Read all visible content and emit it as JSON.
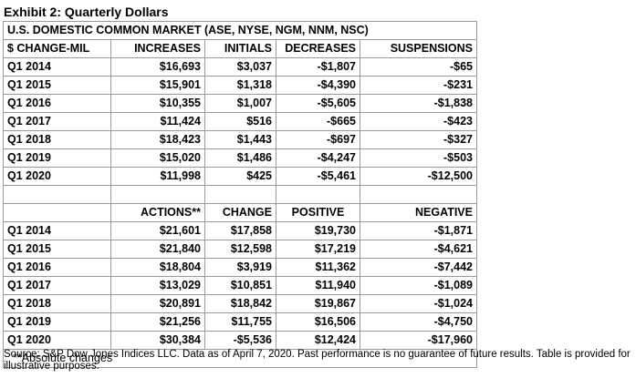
{
  "title": "Exhibit 2: Quarterly Dollars",
  "market_header": "U.S. DOMESTIC COMMON MARKET (ASE, NYSE, NGM, NNM, NSC)",
  "table1": {
    "headers": [
      "$ CHANGE-MIL",
      "INCREASES",
      "INITIALS",
      "DECREASES",
      "SUSPENSIONS"
    ],
    "rows": [
      [
        "Q1 2014",
        "$16,693",
        "$3,037",
        "-$1,807",
        "-$65"
      ],
      [
        "Q1 2015",
        "$15,901",
        "$1,318",
        "-$4,390",
        "-$231"
      ],
      [
        "Q1 2016",
        "$10,355",
        "$1,007",
        "-$5,605",
        "-$1,838"
      ],
      [
        "Q1 2017",
        "$11,424",
        "$516",
        "-$665",
        "-$423"
      ],
      [
        "Q1 2018",
        "$18,423",
        "$1,443",
        "-$697",
        "-$327"
      ],
      [
        "Q1 2019",
        "$15,020",
        "$1,486",
        "-$4,247",
        "-$503"
      ],
      [
        "Q1 2020",
        "$11,998",
        "$425",
        "-$5,461",
        "-$12,500"
      ]
    ]
  },
  "table2": {
    "headers": [
      "",
      "ACTIONS**",
      "CHANGE",
      "POSITIVE",
      "NEGATIVE"
    ],
    "rows": [
      [
        "Q1 2014",
        "$21,601",
        "$17,858",
        "$19,730",
        "-$1,871"
      ],
      [
        "Q1 2015",
        "$21,840",
        "$12,598",
        "$17,219",
        "-$4,621"
      ],
      [
        "Q1 2016",
        "$18,804",
        "$3,919",
        "$11,362",
        "-$7,442"
      ],
      [
        "Q1 2017",
        "$13,029",
        "$10,851",
        "$11,940",
        "-$1,089"
      ],
      [
        "Q1 2018",
        "$20,891",
        "$18,842",
        "$19,867",
        "-$1,024"
      ],
      [
        "Q1 2019",
        "$21,256",
        "$11,755",
        "$16,506",
        "-$4,750"
      ],
      [
        "Q1 2020",
        "$30,384",
        "-$5,536",
        "$12,424",
        "-$17,960"
      ]
    ],
    "footnote": "**Absolute changes"
  },
  "source": "Source: S&P Dow Jones Indices LLC. Data as of April 7, 2020. Past performance is no guarantee of future results. Table is provided for illustrative purposes."
}
